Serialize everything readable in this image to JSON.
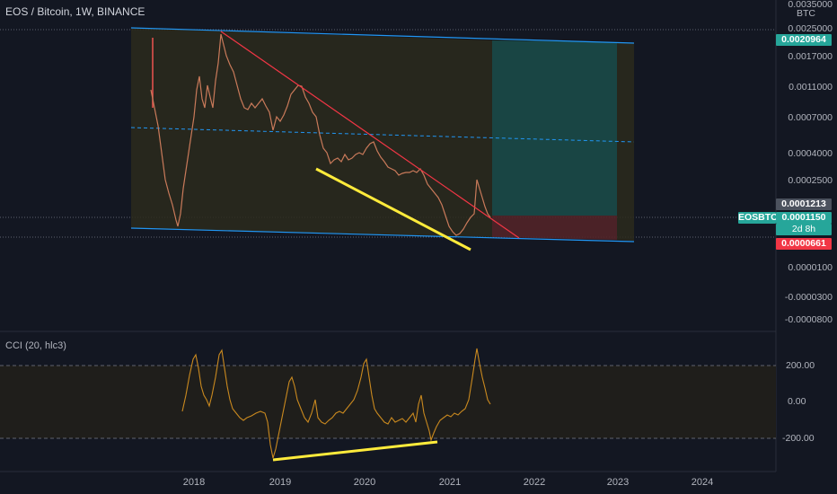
{
  "header": {
    "symbol_title": "EOS / Bitcoin, 1W, BINANCE"
  },
  "price_axis": {
    "currency": "BTC",
    "labels": [
      "0.0035000",
      "0.0025000",
      "0.0017000",
      "0.0011000",
      "0.0007000",
      "0.0004000",
      "0.0002500",
      "0.0000100",
      "-0.0000300",
      "-0.0000800"
    ],
    "top_badge": "0.0020964",
    "gray_badge": "0.0001213",
    "symbol_badge": "EOSBTC",
    "price_badge": "0.0001150",
    "countdown": "2d 8h",
    "bottom_badge": "0.0000661"
  },
  "cci_panel": {
    "title": "CCI (20, hlc3)",
    "labels": [
      "200.00",
      "0.00",
      "-200.00"
    ]
  },
  "time_axis": {
    "labels": [
      "2018",
      "2019",
      "2020",
      "2021",
      "2022",
      "2023",
      "2024"
    ]
  },
  "colors": {
    "background": "#131722",
    "channel_line": "#2196f3",
    "trend_line": "#f23645",
    "divergence_line": "#ffeb3b",
    "target_zone": "#1b4a48",
    "stop_zone": "#522328",
    "cci_line": "#c9891f",
    "up_candle": "#26a69a",
    "down_candle": "#ef5350",
    "teal_badge": "#26a69a",
    "red_badge": "#f23645",
    "gray_badge": "#4c525e"
  }
}
